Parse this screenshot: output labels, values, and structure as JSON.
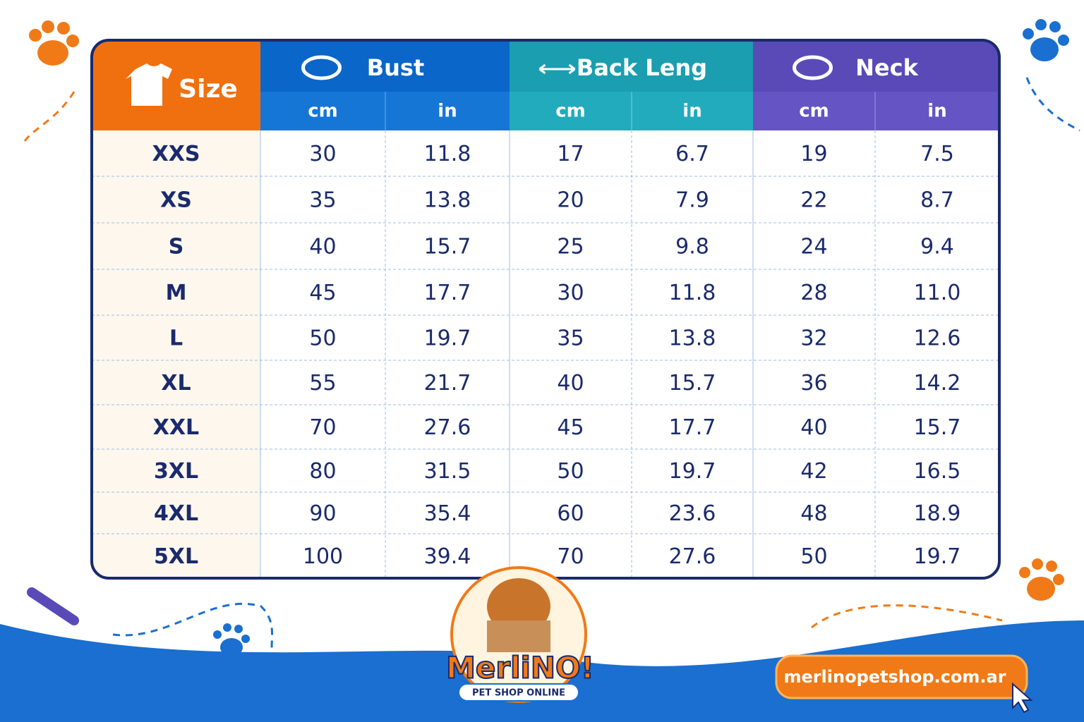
{
  "table": {
    "headers": [
      "Size",
      "Bust",
      "Back Leng",
      "Neck"
    ],
    "units": [
      "cm",
      "in",
      "cm",
      "in",
      "cm",
      "in"
    ],
    "rows": [
      [
        "XXS",
        "30",
        "11.8",
        "17",
        "6.7",
        "19",
        "7.5"
      ],
      [
        "XS",
        "35",
        "13.8",
        "20",
        "7.9",
        "22",
        "8.7"
      ],
      [
        "S",
        "40",
        "15.7",
        "25",
        "9.8",
        "24",
        "9.4"
      ],
      [
        "M",
        "45",
        "17.7",
        "30",
        "11.8",
        "28",
        "11.0"
      ],
      [
        "L",
        "50",
        "19.7",
        "35",
        "13.8",
        "32",
        "12.6"
      ],
      [
        "XL",
        "55",
        "21.7",
        "40",
        "15.7",
        "36",
        "14.2"
      ],
      [
        "XXL",
        "70",
        "27.6",
        "45",
        "17.7",
        "40",
        "15.7"
      ],
      [
        "3XL",
        "80",
        "31.5",
        "50",
        "19.7",
        "42",
        "16.5"
      ],
      [
        "4XL",
        "90",
        "35.4",
        "60",
        "23.6",
        "48",
        "18.9"
      ],
      [
        "5XL",
        "100",
        "39.4",
        "70",
        "27.6",
        "50",
        "19.7"
      ]
    ]
  },
  "logo": {
    "name": "MerliNO!",
    "tagline": "PET SHOP ONLINE"
  },
  "url": "merlinopetshop.com.ar"
}
